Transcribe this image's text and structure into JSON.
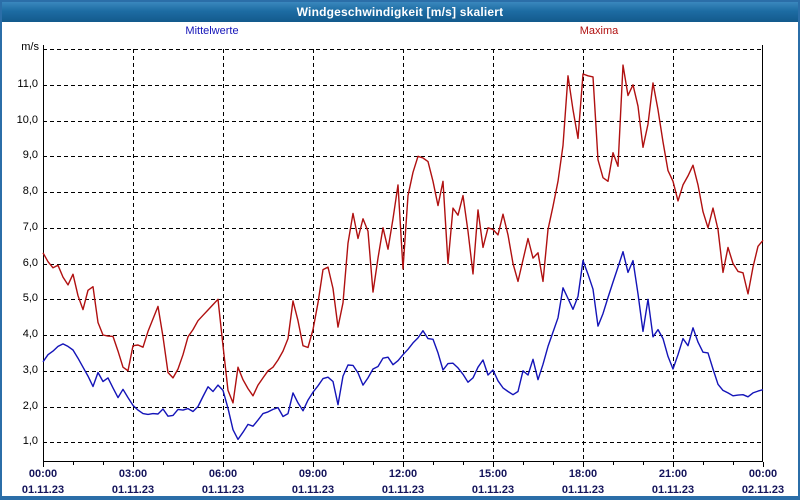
{
  "window": {
    "title": "Windgeschwindigkeit [m/s] skaliert"
  },
  "colors": {
    "titlebar": "#1d6ca3",
    "frame": "#2b6ea8",
    "grid": "#000000",
    "mean_line": "#1414b8",
    "max_line": "#b01010",
    "tick_text": "#13135a"
  },
  "chart_data": {
    "type": "line",
    "title": "Windgeschwindigkeit [m/s] skaliert",
    "ylabel_unit": "m/s",
    "x_unit": "time of day, 01.11.23 00:00 to 02.11.23 00:00",
    "x_step_minutes": 10,
    "grid": "dashed",
    "legend_position": "top",
    "ylim": [
      0.45,
      12.1
    ],
    "y_axis": {
      "top_gridline_value": 12,
      "tick_values": [
        11,
        10,
        9,
        8,
        7,
        6,
        5,
        4,
        3,
        2,
        1
      ],
      "tick_labels": [
        "11,0",
        "10,0",
        "9,0",
        "8,0",
        "7,0",
        "6,0",
        "5,0",
        "4,0",
        "3,0",
        "2,0",
        "1,0"
      ]
    },
    "x_axis": {
      "tick_hours": [
        0,
        3,
        6,
        9,
        12,
        15,
        18,
        21,
        24
      ],
      "tick_time_labels": [
        "00:00",
        "03:00",
        "06:00",
        "09:00",
        "12:00",
        "15:00",
        "18:00",
        "21:00",
        "00:00"
      ],
      "tick_date_labels": [
        "01.11.23",
        "01.11.23",
        "01.11.23",
        "01.11.23",
        "01.11.23",
        "01.11.23",
        "01.11.23",
        "01.11.23",
        "02.11.23"
      ],
      "minor_tick_every_hours": 1,
      "gridline_hours": [
        3,
        6,
        9,
        12,
        15,
        18,
        21
      ]
    },
    "series": [
      {
        "name": "Mittelwerte",
        "color": "#1414b8",
        "values": [
          3.25,
          3.45,
          3.55,
          3.68,
          3.75,
          3.68,
          3.58,
          3.35,
          3.1,
          2.85,
          2.56,
          2.95,
          2.7,
          2.8,
          2.52,
          2.25,
          2.48,
          2.25,
          2.03,
          1.9,
          1.8,
          1.78,
          1.8,
          1.79,
          1.93,
          1.73,
          1.75,
          1.92,
          1.9,
          1.94,
          1.86,
          2.0,
          2.28,
          2.55,
          2.42,
          2.6,
          2.45,
          1.95,
          1.35,
          1.08,
          1.28,
          1.5,
          1.45,
          1.62,
          1.8,
          1.85,
          1.92,
          1.97,
          1.72,
          1.8,
          2.38,
          2.1,
          1.88,
          2.18,
          2.4,
          2.58,
          2.78,
          2.82,
          2.7,
          2.05,
          2.85,
          3.16,
          3.15,
          2.94,
          2.6,
          2.8,
          3.05,
          3.12,
          3.35,
          3.38,
          3.17,
          3.28,
          3.45,
          3.6,
          3.78,
          3.92,
          4.12,
          3.9,
          3.88,
          3.5,
          3.02,
          3.2,
          3.21,
          3.08,
          2.9,
          2.68,
          2.8,
          3.1,
          3.3,
          2.88,
          3.02,
          2.72,
          2.52,
          2.42,
          2.33,
          2.42,
          3.0,
          2.88,
          3.32,
          2.75,
          3.18,
          3.68,
          4.08,
          4.48,
          5.32,
          5.02,
          4.72,
          5.08,
          6.08,
          5.7,
          5.28,
          4.25,
          4.6,
          5.05,
          5.48,
          5.9,
          6.33,
          5.75,
          6.08,
          5.15,
          4.1,
          5.0,
          3.95,
          4.15,
          3.9,
          3.4,
          3.05,
          3.45,
          3.9,
          3.7,
          4.2,
          3.8,
          3.52,
          3.5,
          3.05,
          2.62,
          2.45,
          2.38,
          2.3,
          2.32,
          2.33,
          2.27,
          2.38,
          2.43,
          2.47
        ]
      },
      {
        "name": "Maxima",
        "color": "#b01010",
        "values": [
          6.3,
          6.05,
          5.88,
          5.95,
          5.62,
          5.4,
          5.7,
          5.1,
          4.71,
          5.25,
          5.35,
          4.35,
          4.0,
          3.97,
          3.96,
          3.55,
          3.1,
          3.0,
          3.7,
          3.72,
          3.66,
          4.1,
          4.45,
          4.8,
          3.95,
          2.95,
          2.8,
          3.05,
          3.45,
          3.95,
          4.15,
          4.4,
          4.55,
          4.7,
          4.85,
          5.0,
          3.7,
          2.45,
          2.1,
          3.1,
          2.75,
          2.5,
          2.3,
          2.6,
          2.8,
          3.0,
          3.1,
          3.3,
          3.55,
          3.9,
          4.95,
          4.4,
          3.7,
          3.65,
          4.15,
          4.9,
          5.83,
          5.9,
          5.3,
          4.22,
          4.9,
          6.57,
          7.4,
          6.7,
          7.25,
          6.9,
          5.2,
          6.15,
          7.0,
          6.4,
          7.25,
          8.2,
          5.85,
          7.9,
          8.55,
          9.0,
          8.95,
          8.85,
          8.3,
          7.62,
          8.3,
          6.0,
          7.55,
          7.35,
          7.9,
          6.9,
          5.71,
          7.5,
          6.45,
          7.0,
          6.95,
          6.8,
          7.38,
          6.8,
          6.0,
          5.5,
          6.1,
          6.7,
          6.15,
          6.3,
          5.5,
          6.95,
          7.6,
          8.3,
          9.3,
          11.25,
          10.3,
          9.5,
          11.3,
          11.25,
          11.22,
          8.9,
          8.4,
          8.3,
          9.1,
          8.72,
          11.55,
          10.7,
          11.0,
          10.4,
          9.25,
          9.9,
          11.05,
          10.3,
          9.4,
          8.6,
          8.3,
          7.75,
          8.2,
          8.45,
          8.75,
          8.2,
          7.45,
          7.0,
          7.55,
          6.95,
          5.75,
          6.45,
          6.0,
          5.78,
          5.74,
          5.15,
          5.9,
          6.48,
          6.65
        ]
      }
    ]
  }
}
